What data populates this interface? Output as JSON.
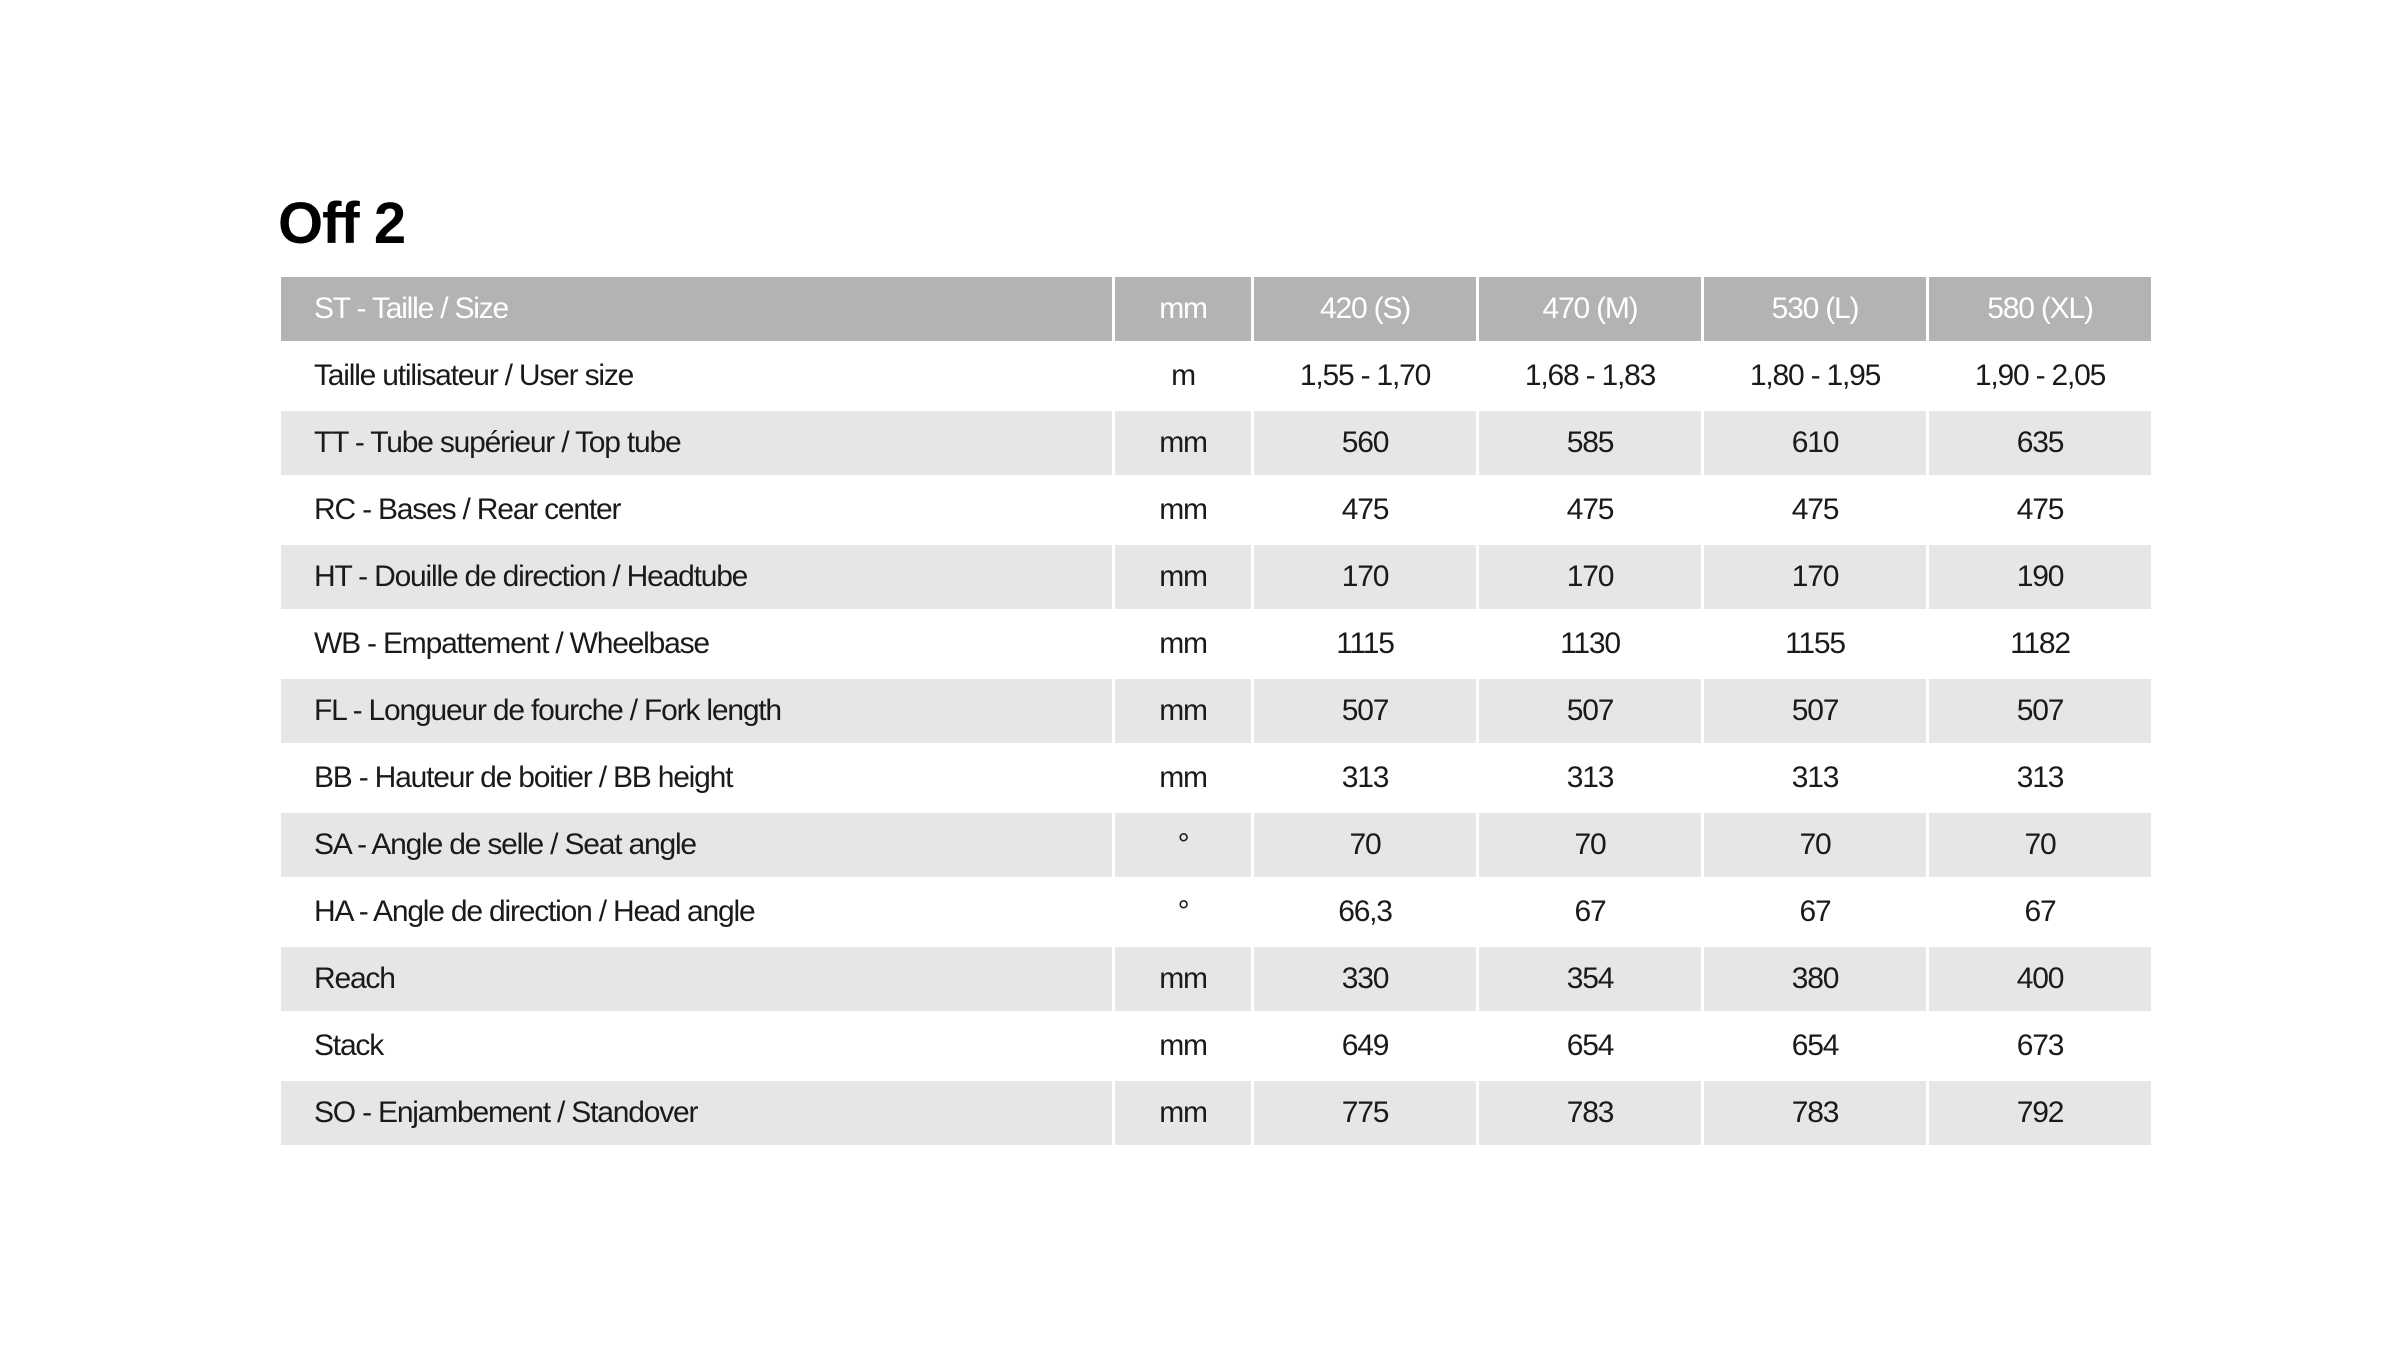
{
  "title": "Off 2",
  "colors": {
    "header_bg": "#b3b3b3",
    "stripe_bg": "#e6e6e6"
  },
  "header": [
    "ST - Taille / Size",
    "mm",
    "420 (S)",
    "470 (M)",
    "530 (L)",
    "580 (XL)"
  ],
  "rows": [
    [
      "Taille utilisateur / User size",
      "m",
      "1,55 - 1,70",
      "1,68 - 1,83",
      "1,80 - 1,95",
      "1,90 - 2,05"
    ],
    [
      "TT - Tube supérieur / Top tube",
      "mm",
      "560",
      "585",
      "610",
      "635"
    ],
    [
      "RC - Bases / Rear center",
      "mm",
      "475",
      "475",
      "475",
      "475"
    ],
    [
      "HT - Douille de direction / Headtube",
      "mm",
      "170",
      "170",
      "170",
      "190"
    ],
    [
      "WB - Empattement / Wheelbase",
      "mm",
      "1115",
      "1130",
      "1155",
      "1182"
    ],
    [
      "FL - Longueur de fourche / Fork length",
      "mm",
      "507",
      "507",
      "507",
      "507"
    ],
    [
      "BB - Hauteur de boitier / BB height",
      "mm",
      "313",
      "313",
      "313",
      "313"
    ],
    [
      "SA - Angle de selle / Seat angle",
      "°",
      "70",
      "70",
      "70",
      "70"
    ],
    [
      "HA - Angle de direction / Head angle",
      "°",
      "66,3",
      "67",
      "67",
      "67"
    ],
    [
      "Reach",
      "mm",
      "330",
      "354",
      "380",
      "400"
    ],
    [
      "Stack",
      "mm",
      "649",
      "654",
      "654",
      "673"
    ],
    [
      "SO - Enjambement / Standover",
      "mm",
      "775",
      "783",
      "783",
      "792"
    ]
  ]
}
